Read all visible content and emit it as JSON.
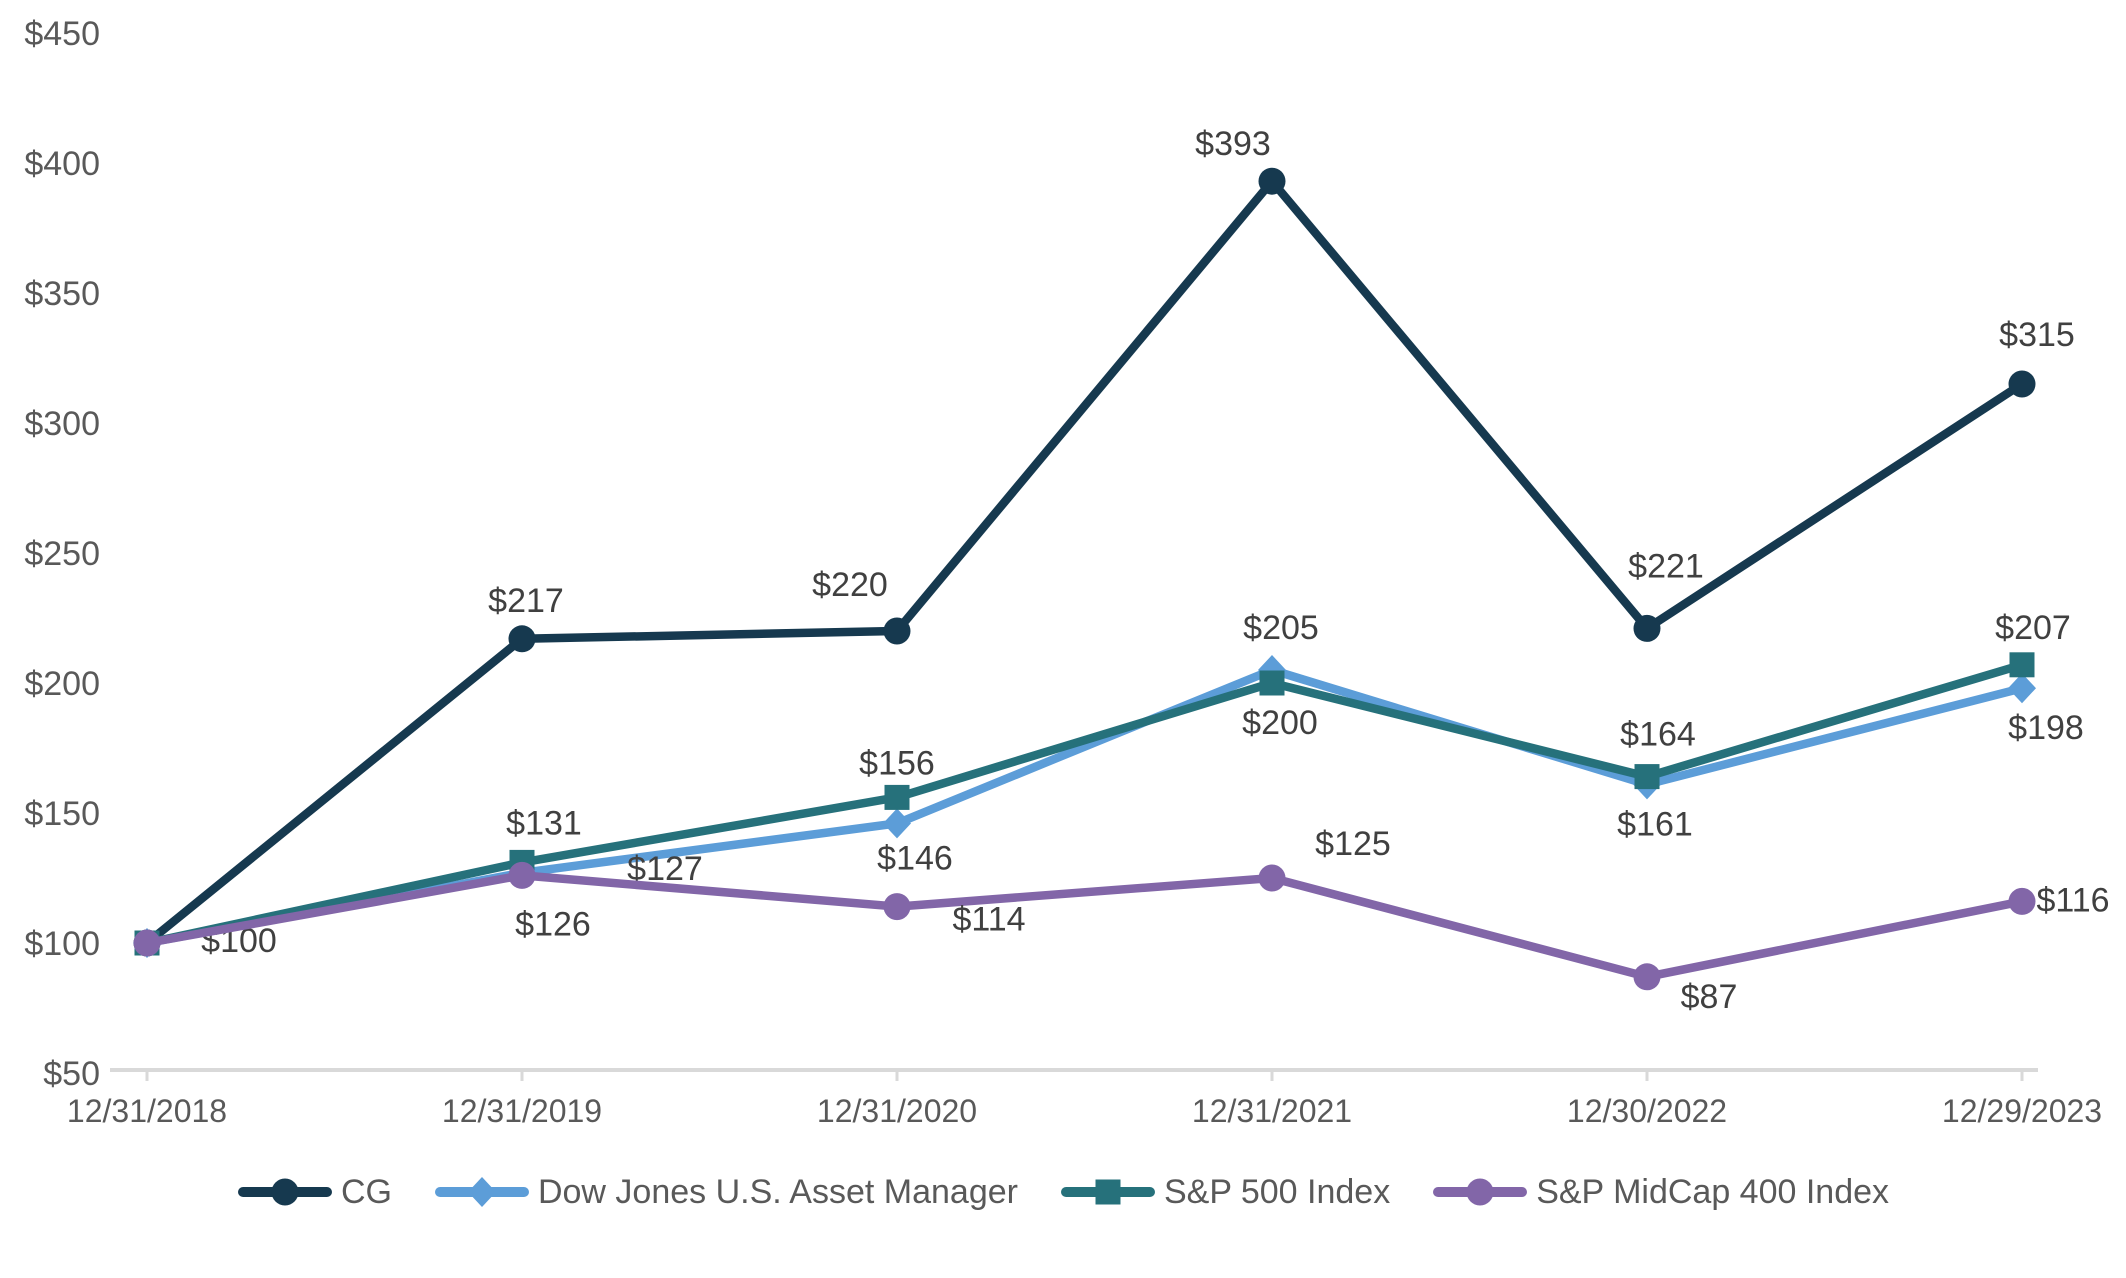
{
  "chart_data": {
    "type": "line",
    "title": "",
    "xlabel": "",
    "ylabel": "",
    "x_categories": [
      "12/31/2018",
      "12/31/2019",
      "12/31/2020",
      "12/31/2021",
      "12/30/2022",
      "12/29/2023"
    ],
    "y_axis": {
      "min": 50,
      "max": 450,
      "step": 50,
      "tick_labels": [
        "$450",
        "$400",
        "$350",
        "$300",
        "$250",
        "$200",
        "$150",
        "$100",
        "$50"
      ]
    },
    "grid": false,
    "legend_position": "bottom",
    "axis_line_color": "#d9d9d9",
    "axis_text_color": "#595959",
    "data_label_color": "#404040",
    "series": [
      {
        "name": "CG",
        "color": "#16394f",
        "marker": "circle",
        "values": [
          100,
          217,
          220,
          393,
          221,
          315
        ],
        "labels": [
          "$100",
          "$217",
          "$220",
          "$393",
          "$221",
          "$315"
        ],
        "label_offsets": [
          [
            92,
            -3
          ],
          [
            4,
            -39
          ],
          [
            -47,
            -47
          ],
          [
            -39,
            -38
          ],
          [
            19,
            -63
          ],
          [
            15,
            -50
          ]
        ]
      },
      {
        "name": "Dow Jones U.S. Asset Manager",
        "color": "#5c9dd8",
        "marker": "diamond",
        "values": [
          100,
          127,
          146,
          205,
          161,
          198
        ],
        "labels": [
          null,
          "$127",
          "$146",
          "$205",
          "$161",
          "$198"
        ],
        "label_offsets": [
          null,
          [
            143,
            -5
          ],
          [
            18,
            34
          ],
          [
            9,
            -43
          ],
          [
            8,
            39
          ],
          [
            24,
            39
          ]
        ]
      },
      {
        "name": "S&P 500 Index",
        "color": "#26717b",
        "marker": "square",
        "values": [
          100,
          131,
          156,
          200,
          164,
          207
        ],
        "labels": [
          null,
          "$131",
          "$156",
          "$200",
          "$164",
          "$207"
        ],
        "label_offsets": [
          null,
          [
            22,
            -40
          ],
          [
            0,
            -35
          ],
          [
            8,
            39
          ],
          [
            11,
            -43
          ],
          [
            11,
            -38
          ]
        ]
      },
      {
        "name": "S&P MidCap 400 Index",
        "color": "#8266a8",
        "marker": "circle",
        "values": [
          100,
          126,
          114,
          125,
          87,
          116
        ],
        "labels": [
          null,
          "$126",
          "$114",
          "$125",
          "$87",
          "$116"
        ],
        "label_offsets": [
          null,
          [
            31,
            48
          ],
          [
            92,
            12
          ],
          [
            81,
            -35
          ],
          [
            62,
            19
          ],
          [
            51,
            -2
          ]
        ]
      }
    ]
  }
}
